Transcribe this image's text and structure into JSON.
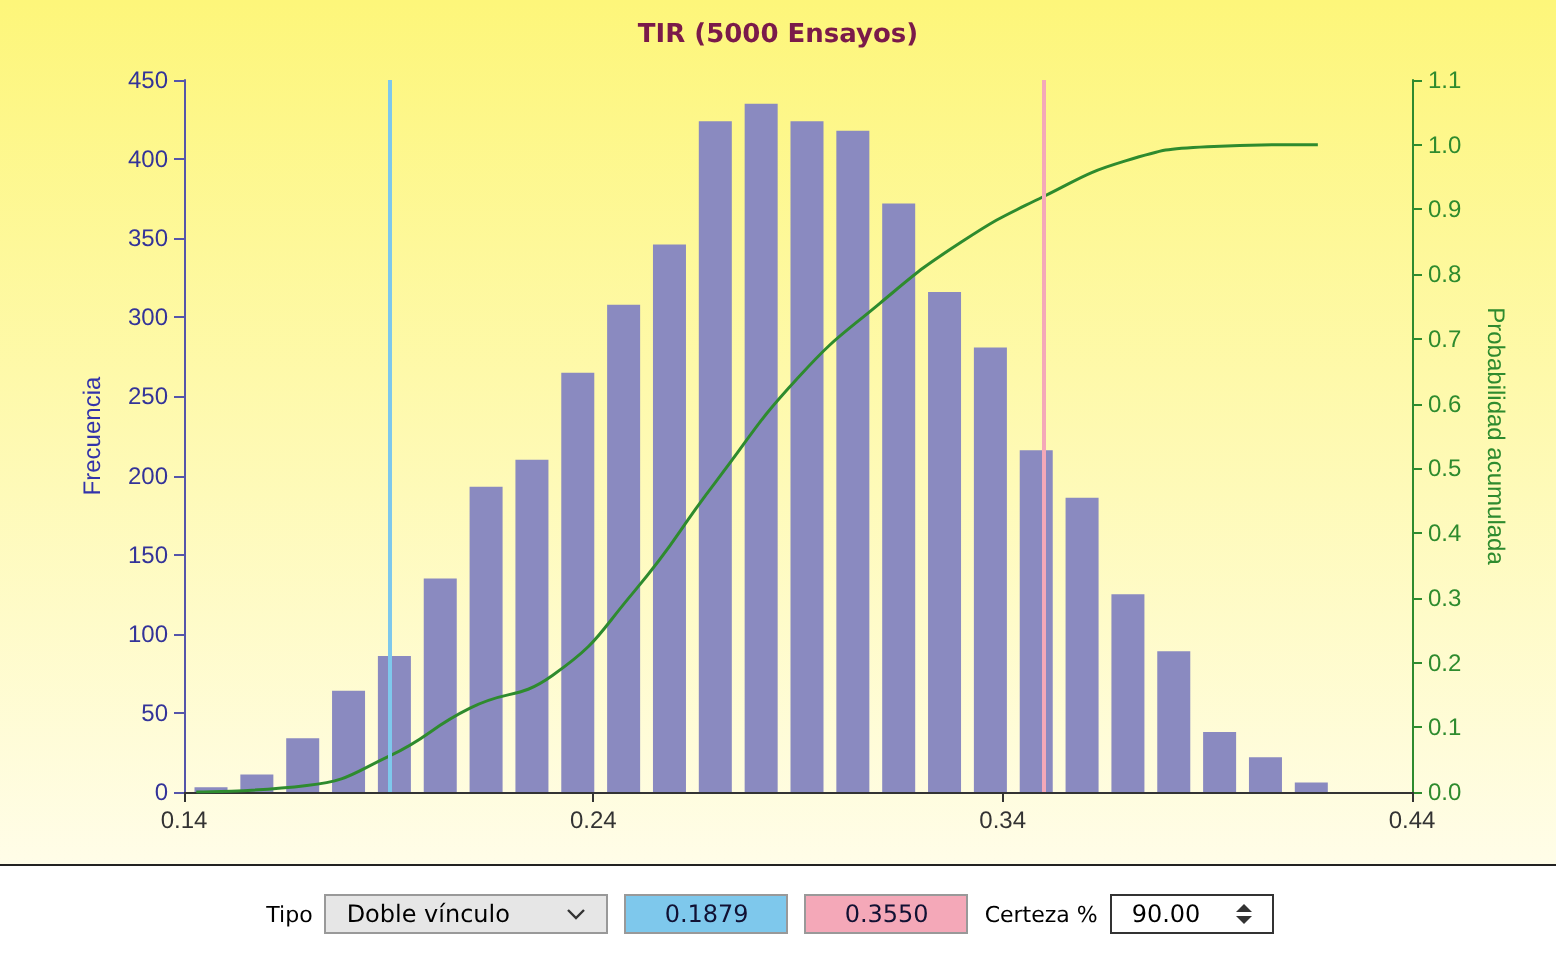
{
  "chart_data": {
    "type": "bar",
    "title": "TIR (5000 Ensayos)",
    "ylabel": "Frecuencia",
    "y2label": "Probabilidad acumulada",
    "x": [
      0.1466,
      0.1578,
      0.169,
      0.1802,
      0.1914,
      0.2026,
      0.2138,
      0.225,
      0.2362,
      0.2474,
      0.2586,
      0.2698,
      0.281,
      0.2922,
      0.3034,
      0.3146,
      0.3258,
      0.337,
      0.3482,
      0.3594,
      0.3706,
      0.3818,
      0.393,
      0.4042,
      0.4154
    ],
    "series": [
      {
        "color": "#8a8ac0",
        "values": [
          3,
          11,
          34,
          64,
          86,
          135,
          193,
          210,
          265,
          308,
          346,
          424,
          435,
          424,
          418,
          372,
          316,
          281,
          216,
          186,
          125,
          89,
          38,
          22,
          6
        ]
      },
      {
        "type": "line",
        "axis": "y2",
        "color": "#2e8b2e",
        "x": [
          0.143,
          0.17,
          0.19,
          0.21,
          0.23,
          0.25,
          0.27,
          0.29,
          0.31,
          0.33,
          0.35,
          0.37,
          0.39,
          0.41,
          0.417
        ],
        "values": [
          0.0,
          0.01,
          0.055,
          0.13,
          0.18,
          0.31,
          0.48,
          0.64,
          0.755,
          0.85,
          0.92,
          0.975,
          0.997,
          1.0,
          1.0
        ]
      }
    ],
    "xlim": [
      0.14,
      0.44
    ],
    "xticks": [
      0.14,
      0.24,
      0.34,
      0.44
    ],
    "ylim": [
      0,
      450
    ],
    "yticks": [
      0,
      50,
      100,
      150,
      200,
      250,
      300,
      350,
      400,
      450
    ],
    "y2lim": [
      0,
      1.1
    ],
    "y2ticks": [
      {
        "value": 0,
        "label": "0.0"
      },
      0.1,
      0.2,
      0.3,
      0.4,
      0.5,
      0.6,
      0.7,
      0.8,
      0.9,
      {
        "value": 1,
        "label": "1.0"
      },
      1.1
    ],
    "ref_lines": [
      {
        "axis": "x",
        "value": 0.19,
        "color": "#7ec8ec"
      },
      {
        "axis": "x",
        "value": 0.35,
        "color": "#f4a8b8"
      }
    ],
    "annotations": [
      "Tipo",
      "Doble vínculo",
      "0.1879",
      "0.3550",
      "Certeza %",
      "90.00"
    ],
    "grid": false,
    "marker": "none"
  }
}
